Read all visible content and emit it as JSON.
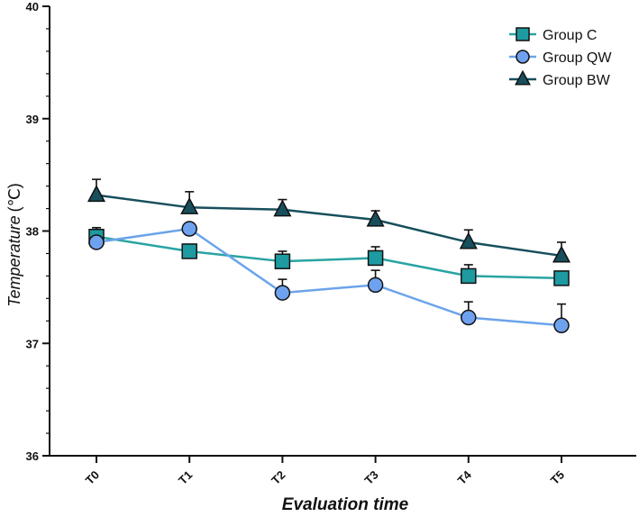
{
  "chart_data": {
    "type": "line",
    "title": "",
    "xlabel": "Evaluation time",
    "ylabel_main": "Temperature",
    "ylabel_unit": "(℃)",
    "categories": [
      "T0",
      "T1",
      "T2",
      "T3",
      "T4",
      "T5"
    ],
    "ylim": [
      36,
      40
    ],
    "yticks": [
      "36",
      "37",
      "38",
      "39",
      "40"
    ],
    "grid": false,
    "legend_position": "top-right",
    "series": [
      {
        "name": "Group C",
        "marker": "square",
        "line_color": "#2aa3a3",
        "fill_color": "#1e9aa1",
        "values": [
          37.95,
          37.82,
          37.73,
          37.76,
          37.6,
          37.58
        ],
        "errors": [
          0.08,
          0.0,
          0.09,
          0.1,
          0.1,
          0.0
        ]
      },
      {
        "name": "Group QW",
        "marker": "circle",
        "line_color": "#6ba4ea",
        "fill_color": "#6ea2ee",
        "values": [
          37.9,
          38.02,
          37.45,
          37.52,
          37.23,
          37.16
        ],
        "errors": [
          0.0,
          0.0,
          0.12,
          0.13,
          0.14,
          0.19
        ]
      },
      {
        "name": "Group BW",
        "marker": "triangle",
        "line_color": "#174f5d",
        "fill_color": "#174f5d",
        "values": [
          38.32,
          38.21,
          38.19,
          38.1,
          37.9,
          37.78
        ],
        "errors": [
          0.14,
          0.14,
          0.09,
          0.08,
          0.11,
          0.12
        ]
      }
    ]
  }
}
